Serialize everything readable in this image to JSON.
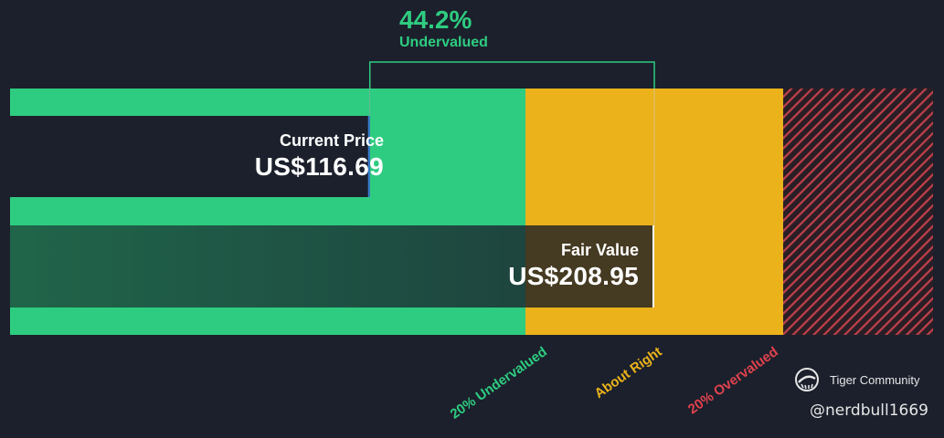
{
  "chart_data": {
    "type": "bar",
    "headline": {
      "percent": "44.2%",
      "label": "Undervalued"
    },
    "current_price": {
      "label": "Current Price",
      "display": "US$116.69",
      "value": 116.69
    },
    "fair_value": {
      "label": "Fair Value",
      "display": "US$208.95",
      "value": 208.95
    },
    "zones": [
      {
        "label": "20% Undervalued",
        "color": "#2ecc80"
      },
      {
        "label": "About Right",
        "color": "#ebb21b"
      },
      {
        "label": "20% Overvalued",
        "color": "#e0424d"
      }
    ]
  },
  "branding": {
    "name": "Tiger Community",
    "handle": "@nerdbull1669"
  },
  "colors": {
    "background": "#1b202c",
    "undervalued": "#2ecc80",
    "about_right": "#ebb21b",
    "overvalued": "#e0424d",
    "fair_value_bar": "#1f5743"
  }
}
